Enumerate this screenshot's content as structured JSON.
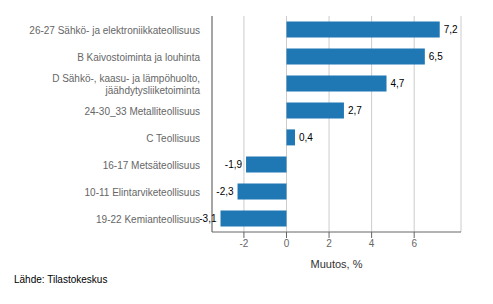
{
  "chart_data": {
    "type": "bar",
    "orientation": "horizontal",
    "categories": [
      "19-22 Kemianteollisuus",
      "10-11 Elintarviketeollisuus",
      "16-17 Metsäteollisuus",
      "C Teollisuus",
      "24-30_33 Metalliteollisuus",
      "D Sähkö-, kaasu- ja lämpöhuolto,\njäähdytysliiketoiminta",
      "B Kaivostoiminta ja louhinta",
      "26-27 Sähkö- ja elektroniikkateollisuus"
    ],
    "values": [
      -3.1,
      -2.3,
      -1.9,
      0.4,
      2.7,
      4.7,
      6.5,
      7.2
    ],
    "value_labels": [
      "-3,1",
      "-2,3",
      "-1,9",
      "0,4",
      "2,7",
      "4,7",
      "6,5",
      "7,2"
    ],
    "data_labels": true,
    "color": "#1f77b4",
    "xlabel": "Muutos, %",
    "source": "Lähde: Tilastokeskus",
    "xlim": [
      -3.5,
      8.2
    ],
    "xticks": [
      -2,
      0,
      2,
      4,
      6
    ],
    "grid": true
  }
}
